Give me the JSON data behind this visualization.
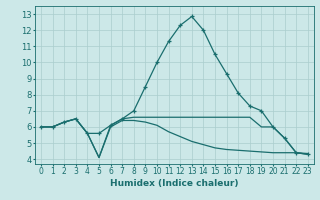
{
  "title": "",
  "xlabel": "Humidex (Indice chaleur)",
  "xlim": [
    -0.5,
    23.5
  ],
  "ylim": [
    3.7,
    13.5
  ],
  "xticks": [
    0,
    1,
    2,
    3,
    4,
    5,
    6,
    7,
    8,
    9,
    10,
    11,
    12,
    13,
    14,
    15,
    16,
    17,
    18,
    19,
    20,
    21,
    22,
    23
  ],
  "yticks": [
    4,
    5,
    6,
    7,
    8,
    9,
    10,
    11,
    12,
    13
  ],
  "bg_color": "#cce8e8",
  "line_color": "#1a6e6e",
  "grid_color": "#aacece",
  "series1_x": [
    0,
    1,
    2,
    3,
    4,
    5,
    6,
    7,
    8,
    9,
    10,
    11,
    12,
    13,
    14,
    15,
    16,
    17,
    18,
    19,
    20,
    21,
    22,
    23
  ],
  "series1_y": [
    6.0,
    6.0,
    6.3,
    6.5,
    5.6,
    5.6,
    6.1,
    6.5,
    7.0,
    8.5,
    10.0,
    11.3,
    12.3,
    12.85,
    12.0,
    10.5,
    9.3,
    8.1,
    7.3,
    7.0,
    6.0,
    5.3,
    4.4,
    4.3
  ],
  "series2_x": [
    0,
    1,
    2,
    3,
    4,
    5,
    6,
    7,
    8,
    9,
    10,
    11,
    12,
    13,
    14,
    15,
    16,
    17,
    18,
    19,
    20,
    21,
    22,
    23
  ],
  "series2_y": [
    6.0,
    6.0,
    6.3,
    6.5,
    5.6,
    4.1,
    6.1,
    6.5,
    6.6,
    6.6,
    6.6,
    6.6,
    6.6,
    6.6,
    6.6,
    6.6,
    6.6,
    6.6,
    6.6,
    6.0,
    6.0,
    5.3,
    4.4,
    4.3
  ],
  "series3_x": [
    0,
    1,
    2,
    3,
    4,
    5,
    6,
    7,
    8,
    9,
    10,
    11,
    12,
    13,
    14,
    15,
    16,
    17,
    18,
    19,
    20,
    21,
    22,
    23
  ],
  "series3_y": [
    6.0,
    6.0,
    6.3,
    6.5,
    5.6,
    4.1,
    6.0,
    6.4,
    6.4,
    6.3,
    6.1,
    5.7,
    5.4,
    5.1,
    4.9,
    4.7,
    4.6,
    4.55,
    4.5,
    4.45,
    4.4,
    4.4,
    4.4,
    4.35
  ]
}
